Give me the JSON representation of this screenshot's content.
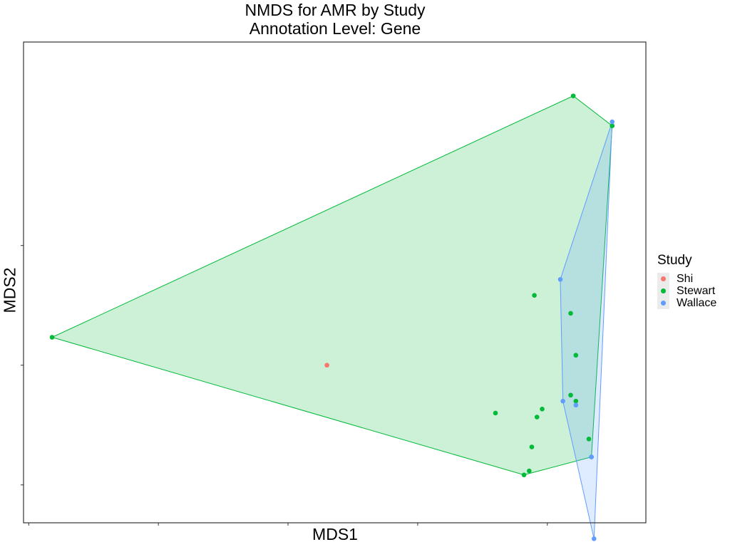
{
  "chart_data": {
    "type": "scatter",
    "title": "NMDS for AMR by Study",
    "subtitle": "Annotation Level: Gene",
    "xlabel": "MDS1",
    "ylabel": "MDS2",
    "xlim": [
      -1.02,
      1.38
    ],
    "ylim": [
      -0.79,
      1.62
    ],
    "grid": false,
    "hull_polygons": true,
    "legend": {
      "title": "Study",
      "position": "right",
      "entries": [
        "Shi",
        "Stewart",
        "Wallace"
      ]
    },
    "series": [
      {
        "name": "Shi",
        "color": "#F8766D",
        "points": [
          [
            0.15,
            0.0
          ]
        ]
      },
      {
        "name": "Stewart",
        "color": "#00BA38",
        "points": [
          [
            1.1,
            1.35
          ],
          [
            1.25,
            1.2
          ],
          [
            -0.91,
            0.14
          ],
          [
            0.95,
            0.35
          ],
          [
            1.09,
            0.26
          ],
          [
            1.11,
            0.05
          ],
          [
            1.09,
            -0.15
          ],
          [
            1.11,
            -0.18
          ],
          [
            0.8,
            -0.24
          ],
          [
            0.98,
            -0.22
          ],
          [
            0.96,
            -0.26
          ],
          [
            1.16,
            -0.37
          ],
          [
            0.94,
            -0.41
          ],
          [
            0.93,
            -0.53
          ],
          [
            0.91,
            -0.55
          ],
          [
            1.17,
            -0.46
          ]
        ]
      },
      {
        "name": "Wallace",
        "color": "#619CFF",
        "points": [
          [
            1.25,
            1.22
          ],
          [
            1.05,
            0.43
          ],
          [
            1.06,
            -0.18
          ],
          [
            1.11,
            -0.2
          ],
          [
            1.17,
            -0.46
          ],
          [
            1.18,
            -0.87
          ]
        ]
      }
    ]
  }
}
